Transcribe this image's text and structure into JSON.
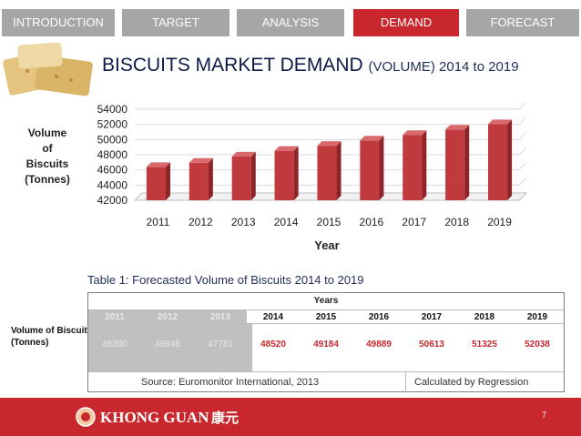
{
  "tabs": [
    {
      "label": "INTRODUCTION"
    },
    {
      "label": "TARGET"
    },
    {
      "label": "ANALYSIS"
    },
    {
      "label": "DEMAND"
    },
    {
      "label": "FORECAST"
    }
  ],
  "active_tab": "DEMAND",
  "title": {
    "main": "BISCUITS MARKET DEMAND",
    "sub": "(VOLUME) 2014 to 2019"
  },
  "chart_data": {
    "type": "bar",
    "categories": [
      "2011",
      "2012",
      "2013",
      "2014",
      "2015",
      "2016",
      "2017",
      "2018",
      "2019"
    ],
    "values": [
      46390,
      46946,
      47781,
      48520,
      49184,
      49889,
      50613,
      51325,
      52038
    ],
    "xlabel": "Year",
    "ylabel": [
      "Volume",
      "of",
      "Biscuits",
      "(Tonnes)"
    ],
    "ylim": [
      42000,
      54000
    ],
    "yticks": [
      "42000",
      "44000",
      "46000",
      "48000",
      "50000",
      "52000",
      "54000"
    ],
    "grid": true,
    "bar_color": "#c0393d"
  },
  "table": {
    "caption": "Table 1: Forecasted Volume of Biscuits 2014 to 2019",
    "header": "Years",
    "years": [
      "2011",
      "2012",
      "2013",
      "2014",
      "2015",
      "2016",
      "2017",
      "2018",
      "2019"
    ],
    "row_label": "Volume of Biscuit (Tonnes)",
    "values": [
      "46390",
      "46946",
      "47781",
      "48520",
      "49184",
      "49889",
      "50613",
      "51325",
      "52038"
    ],
    "source": "Source: Euromonitor International, 2013",
    "method": "Calculated by Regression"
  },
  "footer": {
    "brand": "KHONG GUAN",
    "brand_cn": "康元",
    "page": "7"
  },
  "colors": {
    "accent": "#c8282d",
    "tab_inactive": "#a6a6a6",
    "title": "#0d1a46"
  }
}
